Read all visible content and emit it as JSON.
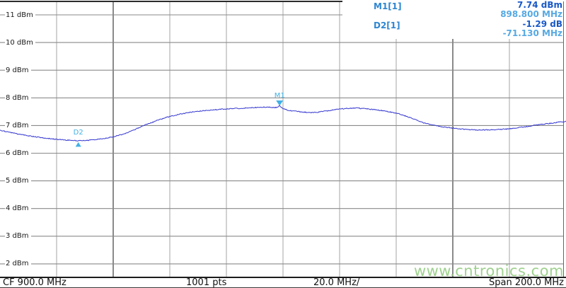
{
  "marker_readout": {
    "m1_label": "M1[1]",
    "m1_amplitude": "7.74 dBm",
    "m1_frequency": "898.800 MHz",
    "d2_label": "D2[1]",
    "d2_amplitude": "-1.29 dB",
    "d2_frequency": "-71.130 MHz"
  },
  "axis": {
    "y_labels": [
      "11 dBm",
      "10 dBm",
      "9 dBm",
      "8 dBm",
      "7 dBm",
      "6 dBm",
      "5 dBm",
      "4 dBm",
      "3 dBm",
      "2 dBm"
    ]
  },
  "bottom_bar": {
    "center_frequency": "CF 900.0 MHz",
    "sweep_points": "1001 pts",
    "scale_per_div": "20.0 MHz/",
    "span": "Span 200.0 MHz"
  },
  "watermark": "www.cntronics.com",
  "colors": {
    "trace": "#3437cf",
    "marker_label": "#2e86d1",
    "amplitude_value": "#1959c7",
    "frequency_value": "#56a9e3",
    "on_trace_marker": "#41b1e6",
    "grid_horizontal": "#8a8a8a",
    "grid_vertical": "#b5b5b5",
    "grid_vertical_dark": "#3c3c3c",
    "border": "#2b2b2b",
    "watermark": "#8fc97c"
  },
  "chart_data": {
    "type": "line",
    "title": "Spectrum analyzer sweep trace",
    "x_unit": "MHz",
    "y_unit": "dBm",
    "x_range": [
      800,
      1000
    ],
    "y_range": [
      2,
      11
    ],
    "y_tick_step_dbm": 1,
    "x_tick_step_mhz": 20,
    "center_frequency_mhz": 900.0,
    "span_mhz": 200.0,
    "mhz_per_division": 20.0,
    "sweep_points": 1001,
    "grid": "on",
    "trace": [
      [
        800,
        6.83
      ],
      [
        806,
        6.7
      ],
      [
        812,
        6.6
      ],
      [
        818,
        6.52
      ],
      [
        823,
        6.48
      ],
      [
        827,
        6.45
      ],
      [
        830,
        6.46
      ],
      [
        834,
        6.49
      ],
      [
        838,
        6.55
      ],
      [
        841,
        6.62
      ],
      [
        844,
        6.7
      ],
      [
        847,
        6.82
      ],
      [
        850,
        6.97
      ],
      [
        853,
        7.08
      ],
      [
        856,
        7.2
      ],
      [
        860,
        7.33
      ],
      [
        864,
        7.42
      ],
      [
        868,
        7.49
      ],
      [
        872,
        7.54
      ],
      [
        876,
        7.57
      ],
      [
        880,
        7.6
      ],
      [
        884,
        7.62
      ],
      [
        888,
        7.64
      ],
      [
        892,
        7.66
      ],
      [
        895,
        7.66
      ],
      [
        897.5,
        7.65
      ],
      [
        898.4,
        7.69
      ],
      [
        898.8,
        7.74
      ],
      [
        899.3,
        7.66
      ],
      [
        900.5,
        7.59
      ],
      [
        902,
        7.55
      ],
      [
        904,
        7.52
      ],
      [
        906,
        7.5
      ],
      [
        908,
        7.48
      ],
      [
        910,
        7.47
      ],
      [
        912,
        7.48
      ],
      [
        914,
        7.51
      ],
      [
        917,
        7.55
      ],
      [
        920,
        7.6
      ],
      [
        923,
        7.62
      ],
      [
        926,
        7.63
      ],
      [
        929,
        7.61
      ],
      [
        932,
        7.58
      ],
      [
        935,
        7.54
      ],
      [
        938,
        7.49
      ],
      [
        941,
        7.42
      ],
      [
        944,
        7.32
      ],
      [
        947,
        7.2
      ],
      [
        950,
        7.09
      ],
      [
        953,
        7.01
      ],
      [
        956,
        6.96
      ],
      [
        959,
        6.92
      ],
      [
        962,
        6.88
      ],
      [
        965,
        6.86
      ],
      [
        968,
        6.84
      ],
      [
        971,
        6.84
      ],
      [
        974,
        6.84
      ],
      [
        977,
        6.86
      ],
      [
        980,
        6.88
      ],
      [
        983,
        6.92
      ],
      [
        986,
        6.96
      ],
      [
        989,
        7.01
      ],
      [
        992,
        7.05
      ],
      [
        995,
        7.09
      ],
      [
        998,
        7.13
      ],
      [
        1000,
        7.15
      ]
    ],
    "markers": [
      {
        "id": "M1",
        "label": "M1",
        "freq_mhz": 898.8,
        "amplitude_dbm": 7.74,
        "shape": "triangle-down"
      },
      {
        "id": "D2",
        "label": "D2",
        "type": "delta",
        "freq_mhz": 827.67,
        "amplitude_dbm": 6.45,
        "delta_db": -1.29,
        "delta_mhz": -71.13,
        "shape": "triangle-up"
      }
    ]
  }
}
